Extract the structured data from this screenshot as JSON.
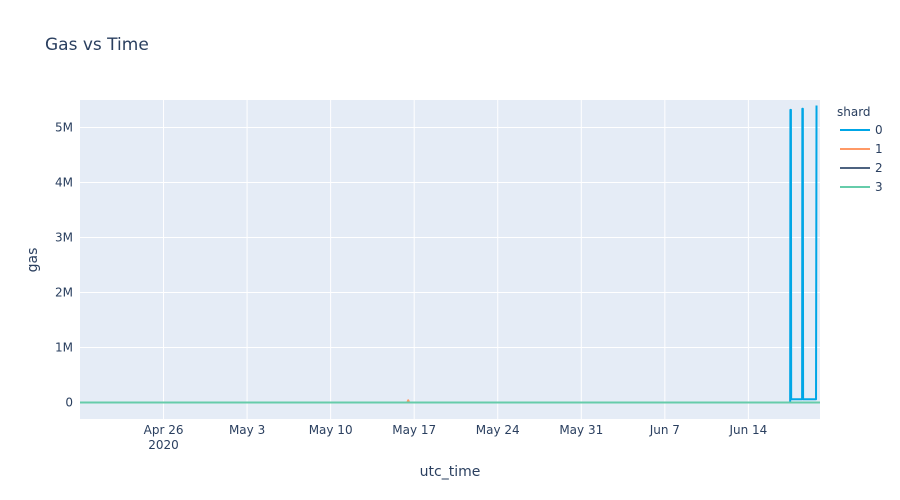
{
  "chart_data": {
    "type": "line",
    "title": "Gas vs Time",
    "xlabel": "utc_time",
    "ylabel": "gas",
    "x_range": [
      "2020-04-19",
      "2020-06-20"
    ],
    "ylim": [
      -300000,
      5500000
    ],
    "x_ticks": [
      {
        "date": "2020-04-26",
        "label": "Apr 26",
        "sublabel": "2020"
      },
      {
        "date": "2020-05-03",
        "label": "May 3"
      },
      {
        "date": "2020-05-10",
        "label": "May 10"
      },
      {
        "date": "2020-05-17",
        "label": "May 17"
      },
      {
        "date": "2020-05-24",
        "label": "May 24"
      },
      {
        "date": "2020-05-31",
        "label": "May 31"
      },
      {
        "date": "2020-06-07",
        "label": "Jun 7"
      },
      {
        "date": "2020-06-14",
        "label": "Jun 14"
      }
    ],
    "y_ticks": [
      {
        "value": 0,
        "label": "0"
      },
      {
        "value": 1000000,
        "label": "1M"
      },
      {
        "value": 2000000,
        "label": "2M"
      },
      {
        "value": 3000000,
        "label": "3M"
      },
      {
        "value": 4000000,
        "label": "4M"
      },
      {
        "value": 5000000,
        "label": "5M"
      }
    ],
    "grid": true,
    "legend": {
      "title": "shard",
      "placement": "top-right"
    },
    "series": [
      {
        "name": "0",
        "color": "#00a6e6",
        "points": [
          [
            "2020-04-19",
            0
          ],
          [
            "2020-06-17",
            0
          ],
          [
            "2020-06-17T12:00",
            0
          ],
          [
            "2020-06-17T12:30",
            5320000
          ],
          [
            "2020-06-17T13:30",
            5320000
          ],
          [
            "2020-06-17T14:00",
            60000
          ],
          [
            "2020-06-18T12:00",
            60000
          ],
          [
            "2020-06-18T12:30",
            5340000
          ],
          [
            "2020-06-18T13:30",
            5340000
          ],
          [
            "2020-06-18T14:00",
            60000
          ],
          [
            "2020-06-19T12:00",
            60000
          ],
          [
            "2020-06-19T16:00",
            60000
          ],
          [
            "2020-06-19T17:00",
            5400000
          ]
        ]
      },
      {
        "name": "1",
        "color": "#ff9966",
        "points": [
          [
            "2020-04-19",
            0
          ],
          [
            "2020-05-16T10:00",
            0
          ],
          [
            "2020-05-16T12:00",
            40000
          ],
          [
            "2020-05-16T14:00",
            0
          ],
          [
            "2020-06-20",
            0
          ]
        ]
      },
      {
        "name": "2",
        "color": "#4d6380",
        "points": [
          [
            "2020-04-19",
            0
          ],
          [
            "2020-06-20",
            0
          ]
        ]
      },
      {
        "name": "3",
        "color": "#66ccaa",
        "points": [
          [
            "2020-04-19",
            0
          ],
          [
            "2020-06-20",
            0
          ]
        ]
      }
    ]
  }
}
